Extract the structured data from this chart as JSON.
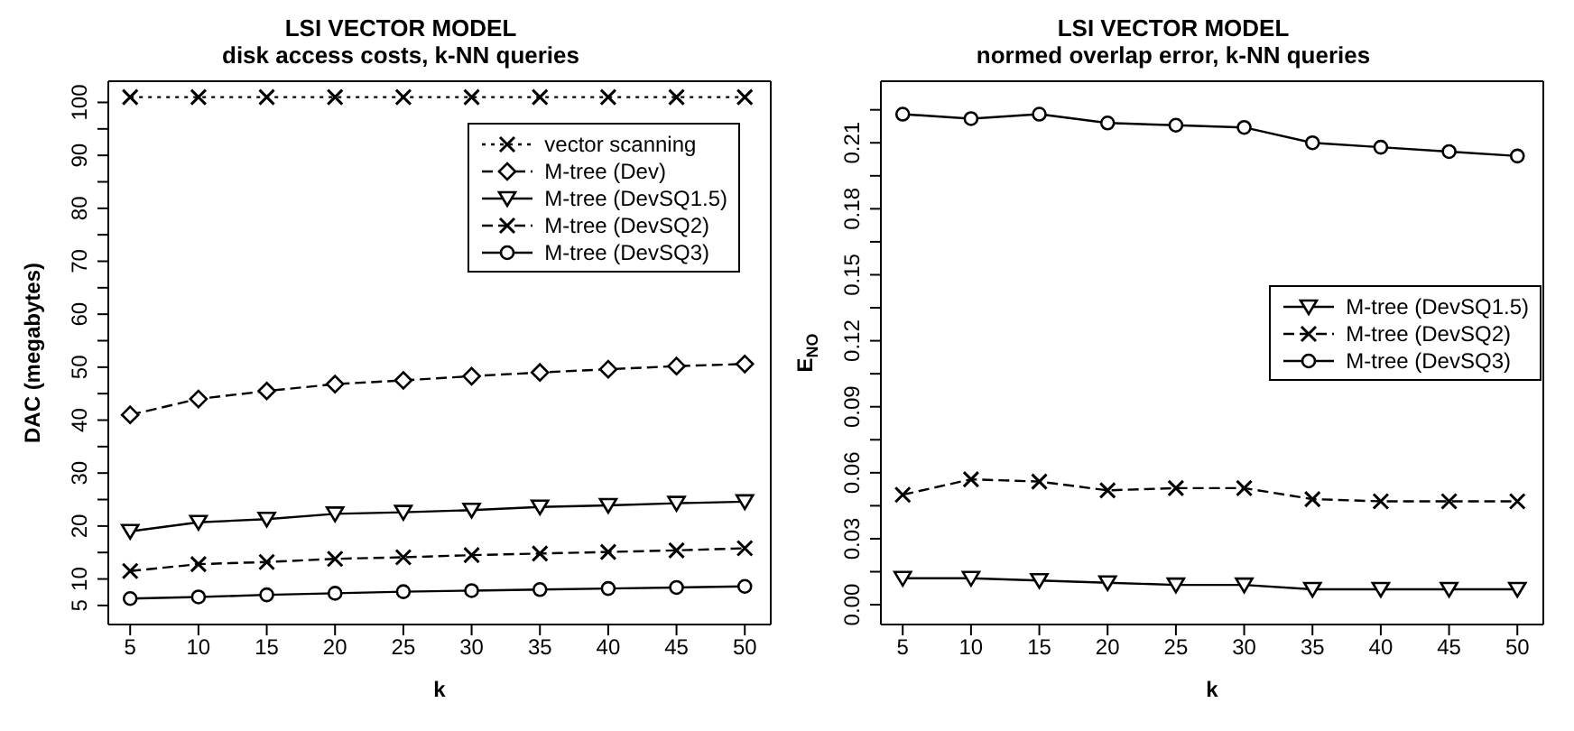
{
  "chart_data": [
    {
      "type": "line",
      "title": "LSI VECTOR MODEL",
      "subtitle": "disk access costs, k-NN queries",
      "xlabel": "k",
      "ylabel": "DAC (megabytes)",
      "x": [
        5,
        10,
        15,
        20,
        25,
        30,
        35,
        40,
        45,
        50
      ],
      "xlim": [
        3.4,
        51.9
      ],
      "xticks": [
        5,
        10,
        15,
        20,
        25,
        30,
        35,
        40,
        45,
        50
      ],
      "ylim": [
        1.4,
        104
      ],
      "yticks": [
        5,
        10,
        {
          "value": 15,
          "label": null
        },
        20,
        {
          "value": 25,
          "label": null
        },
        30,
        {
          "value": 35,
          "label": null
        },
        40,
        {
          "value": 45,
          "label": null
        },
        50,
        {
          "value": 55,
          "label": null
        },
        60,
        {
          "value": 65,
          "label": null
        },
        70,
        {
          "value": 75,
          "label": null
        },
        80,
        {
          "value": 85,
          "label": null
        },
        90,
        {
          "value": 95,
          "label": null
        },
        100
      ],
      "legend": "top right",
      "grid": false,
      "series": [
        {
          "name": "vector scanning",
          "color": "#000000",
          "marker": "cross",
          "line_style": "dotted",
          "values": [
            101,
            101,
            101,
            101,
            101,
            101,
            101,
            101,
            101,
            101
          ]
        },
        {
          "name": "M-tree (Dev)",
          "color": "#000000",
          "marker": "diamond",
          "line_style": "dashed",
          "values": [
            41,
            44,
            45.5,
            46.8,
            47.5,
            48.3,
            49,
            49.6,
            50.2,
            50.6
          ]
        },
        {
          "name": "M-tree (DevSQ1.5)",
          "color": "#000000",
          "marker": "triangle",
          "line_style": "solid",
          "values": [
            19,
            20.7,
            21.3,
            22.3,
            22.6,
            23,
            23.6,
            23.9,
            24.3,
            24.6
          ]
        },
        {
          "name": "M-tree (DevSQ2)",
          "color": "#000000",
          "marker": "cross",
          "line_style": "dashed",
          "values": [
            11.5,
            12.8,
            13.2,
            13.8,
            14.1,
            14.5,
            14.8,
            15.1,
            15.4,
            15.8
          ]
        },
        {
          "name": "M-tree (DevSQ3)",
          "color": "#000000",
          "marker": "circle",
          "line_style": "solid",
          "values": [
            6.3,
            6.6,
            7,
            7.3,
            7.6,
            7.8,
            8,
            8.2,
            8.4,
            8.6
          ]
        }
      ]
    },
    {
      "type": "line",
      "title": "LSI VECTOR MODEL",
      "subtitle": "normed overlap error, k-NN queries",
      "xlabel": "k",
      "ylabel": "E$_{NO}$",
      "x": [
        5,
        10,
        15,
        20,
        25,
        30,
        35,
        40,
        45,
        50
      ],
      "xlim": [
        3.4,
        51.9
      ],
      "xticks": [
        5,
        10,
        15,
        20,
        25,
        30,
        35,
        40,
        45,
        50
      ],
      "ylim": [
        -0.009,
        0.238
      ],
      "yticks": [
        {
          "value": 0,
          "label": "0.00"
        },
        {
          "value": 0.015,
          "label": null
        },
        0.03,
        {
          "value": 0.045,
          "label": null
        },
        0.06,
        {
          "value": 0.075,
          "label": null
        },
        0.09,
        {
          "value": 0.105,
          "label": null
        },
        0.12,
        {
          "value": 0.135,
          "label": null
        },
        0.15,
        {
          "value": 0.165,
          "label": null
        },
        0.18,
        {
          "value": 0.195,
          "label": null
        },
        0.21,
        {
          "value": 0.225,
          "label": null
        }
      ],
      "legend": "right",
      "grid": false,
      "series": [
        {
          "name": "M-tree (DevSQ1.5)",
          "color": "#000000",
          "marker": "triangle",
          "line_style": "solid",
          "values": [
            0.012,
            0.012,
            0.011,
            0.01,
            0.009,
            0.009,
            0.007,
            0.007,
            0.007,
            0.007
          ]
        },
        {
          "name": "M-tree (DevSQ2)",
          "color": "#000000",
          "marker": "cross",
          "line_style": "dashed",
          "values": [
            0.05,
            0.057,
            0.056,
            0.052,
            0.053,
            0.053,
            0.048,
            0.047,
            0.047,
            0.047
          ]
        },
        {
          "name": "M-tree (DevSQ3)",
          "color": "#000000",
          "marker": "circle",
          "line_style": "solid",
          "values": [
            0.223,
            0.221,
            0.223,
            0.219,
            0.218,
            0.217,
            0.21,
            0.208,
            0.206,
            0.204
          ]
        }
      ]
    }
  ]
}
